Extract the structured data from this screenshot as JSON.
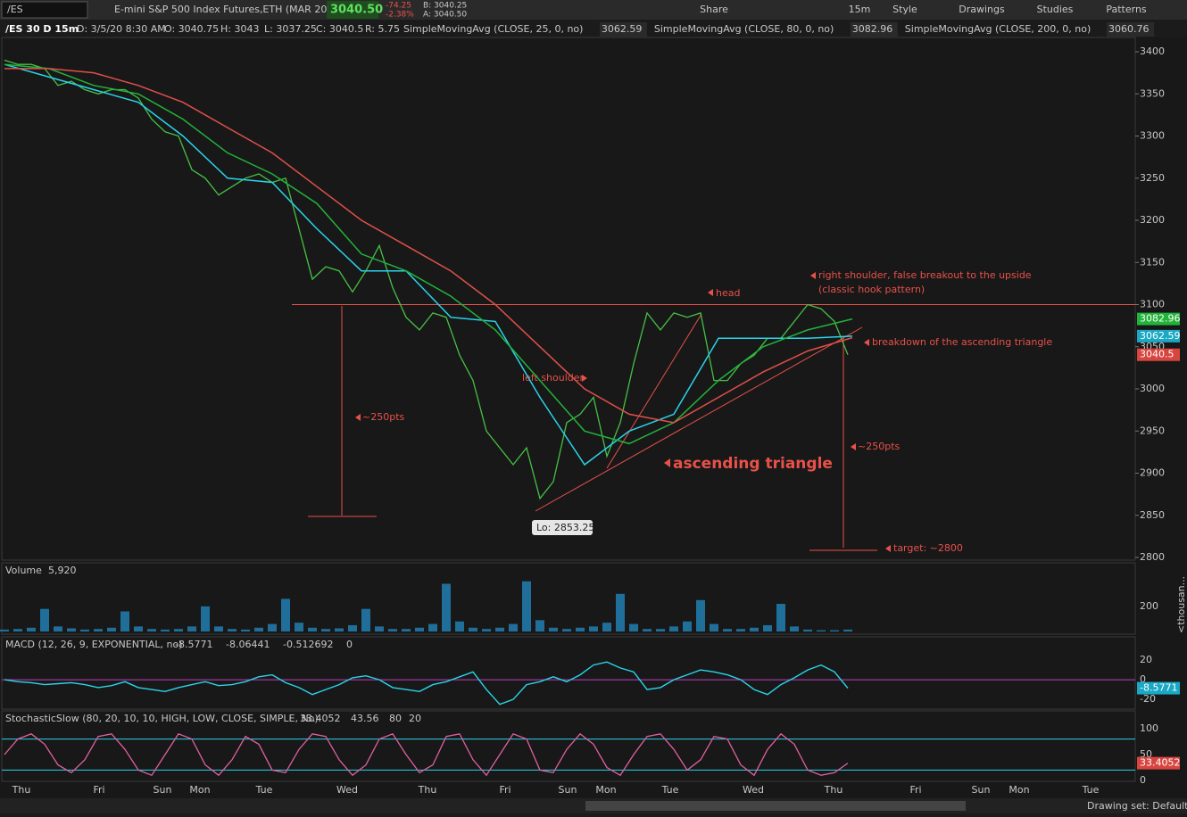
{
  "toolbar": {
    "symbol": "/ES",
    "description": "E-mini S&P 500 Index Futures,ETH (MAR 20)",
    "last": "3040.50",
    "change": "-74.25",
    "change_pct": "-2.38%",
    "bid": "B: 3040.25",
    "ask": "A: 3040.50",
    "buttons": [
      "Share",
      "15m",
      "Style",
      "Drawings",
      "Studies",
      "Patterns"
    ]
  },
  "header": {
    "chart_id": "/ES 30 D 15m",
    "date": "D: 3/5/20 8:30 AM",
    "open": "O: 3040.75",
    "high": "H: 3043",
    "low": "L: 3037.25",
    "close": "C: 3040.5",
    "range": "R: 5.75",
    "studies": [
      {
        "name": "SimpleMovingAvg (CLOSE, 25, 0, no)",
        "value": "3062.59",
        "color": "#2ad4ea"
      },
      {
        "name": "SimpleMovingAvg (CLOSE, 80, 0, no)",
        "value": "3082.96",
        "color": "#22b33a"
      },
      {
        "name": "SimpleMovingAvg (CLOSE, 200, 0, no)",
        "value": "3060.76",
        "color": "#e0504a"
      }
    ]
  },
  "price_chart": {
    "ylim": [
      2800,
      3400
    ],
    "yticks": [
      3400,
      3350,
      3300,
      3250,
      3200,
      3150,
      3100,
      3050,
      3000,
      2950,
      2900,
      2850,
      2800
    ],
    "neckline": 3100,
    "low_label": "Lo: 2853.25",
    "last_badge": "3040.5",
    "close": [
      3390,
      3385,
      3385,
      3380,
      3360,
      3365,
      3355,
      3350,
      3355,
      3355,
      3345,
      3320,
      3305,
      3300,
      3260,
      3250,
      3230,
      3240,
      3250,
      3255,
      3245,
      3250,
      3190,
      3130,
      3145,
      3140,
      3115,
      3140,
      3170,
      3120,
      3085,
      3070,
      3090,
      3085,
      3040,
      3010,
      2950,
      2930,
      2910,
      2930,
      2870,
      2890,
      2960,
      2970,
      2990,
      2920,
      2960,
      3030,
      3090,
      3070,
      3090,
      3085,
      3090,
      3010,
      3010,
      3030,
      3040,
      3060,
      3060,
      3080,
      3100,
      3095,
      3080,
      3040.5
    ],
    "sma": [
      [
        3385,
        3370,
        3355,
        3340,
        3300,
        3250,
        3245,
        3190,
        3140,
        3140,
        3085,
        3080,
        2990,
        2910,
        2950,
        2970,
        3060,
        3060,
        3060,
        3062.59
      ],
      [
        3385,
        3380,
        3360,
        3350,
        3320,
        3280,
        3255,
        3220,
        3160,
        3140,
        3110,
        3070,
        3010,
        2950,
        2935,
        2960,
        3010,
        3050,
        3070,
        3082.96
      ],
      [
        3380,
        3380,
        3375,
        3360,
        3340,
        3310,
        3280,
        3240,
        3200,
        3170,
        3140,
        3100,
        3050,
        3000,
        2970,
        2960,
        2990,
        3020,
        3045,
        3060.76
      ]
    ],
    "annotations": [
      "head",
      "right shoulder, false breakout to the upside",
      "(classic hook pattern)",
      "breakdown of the ascending triangle",
      "left shoulder",
      "~250pts",
      "~250pts",
      "ascending triangle",
      "target: ~2800"
    ]
  },
  "volume_pane": {
    "title": "Volume",
    "value": "5,920",
    "ylim": [
      0,
      540
    ],
    "yticks": [
      200
    ],
    "unit_label": "<thousan...",
    "color": "#1f6f9a",
    "values": [
      15,
      20,
      30,
      180,
      40,
      25,
      15,
      20,
      30,
      160,
      40,
      20,
      15,
      20,
      40,
      200,
      40,
      20,
      15,
      30,
      60,
      260,
      70,
      30,
      20,
      25,
      50,
      180,
      40,
      20,
      20,
      30,
      60,
      380,
      80,
      30,
      20,
      30,
      60,
      400,
      90,
      30,
      20,
      30,
      40,
      70,
      300,
      60,
      20,
      20,
      40,
      80,
      250,
      60,
      20,
      20,
      30,
      50,
      220,
      40,
      15,
      10,
      10,
      15
    ]
  },
  "macd_pane": {
    "title": "MACD (12, 26, 9, EXPONENTIAL, no)",
    "readouts": [
      "-8.5771",
      "-8.06441",
      "-0.512692",
      "0"
    ],
    "ylim": [
      -28,
      30
    ],
    "yticks": [
      20,
      0,
      -20
    ],
    "badge": "-8.5771",
    "values": [
      0,
      -2,
      -3,
      -5,
      -4,
      -3,
      -5,
      -8,
      -6,
      -2,
      -8,
      -10,
      -12,
      -8,
      -5,
      -2,
      -6,
      -5,
      -2,
      3,
      5,
      -3,
      -8,
      -15,
      -10,
      -5,
      2,
      4,
      0,
      -8,
      -10,
      -12,
      -5,
      -2,
      3,
      8,
      -10,
      -25,
      -20,
      -5,
      -2,
      3,
      -2,
      5,
      15,
      18,
      12,
      8,
      -10,
      -8,
      0,
      5,
      10,
      8,
      5,
      0,
      -10,
      -15,
      -5,
      2,
      10,
      15,
      8,
      -8.5771
    ]
  },
  "stoch_pane": {
    "title": "StochasticSlow (80, 20, 10, 10, HIGH, LOW, CLOSE, SIMPLE, No)",
    "readouts": [
      "33.4052",
      "43.56",
      "80",
      "20"
    ],
    "ylim": [
      0,
      100
    ],
    "yticks": [
      100,
      50,
      0
    ],
    "levels": [
      80,
      20
    ],
    "badge": "33.4052",
    "values": [
      50,
      80,
      90,
      70,
      30,
      15,
      40,
      85,
      90,
      60,
      20,
      10,
      50,
      90,
      80,
      30,
      10,
      40,
      85,
      70,
      20,
      15,
      60,
      90,
      85,
      40,
      10,
      30,
      80,
      90,
      50,
      15,
      30,
      85,
      90,
      40,
      10,
      50,
      90,
      80,
      20,
      15,
      60,
      90,
      70,
      25,
      10,
      50,
      85,
      90,
      60,
      20,
      40,
      85,
      80,
      30,
      10,
      60,
      90,
      70,
      20,
      10,
      15,
      33.4052
    ]
  },
  "time_axis": {
    "labels": [
      "Thu",
      "Fri",
      "Sun",
      "Mon",
      "Tue",
      "Wed",
      "Thu",
      "Fri",
      "Sun",
      "Mon",
      "Tue",
      "Wed",
      "Thu",
      "Fri",
      "Sun",
      "Mon",
      "Tue"
    ]
  },
  "status_bar": {
    "drawing_set": "Drawing set: Default"
  }
}
